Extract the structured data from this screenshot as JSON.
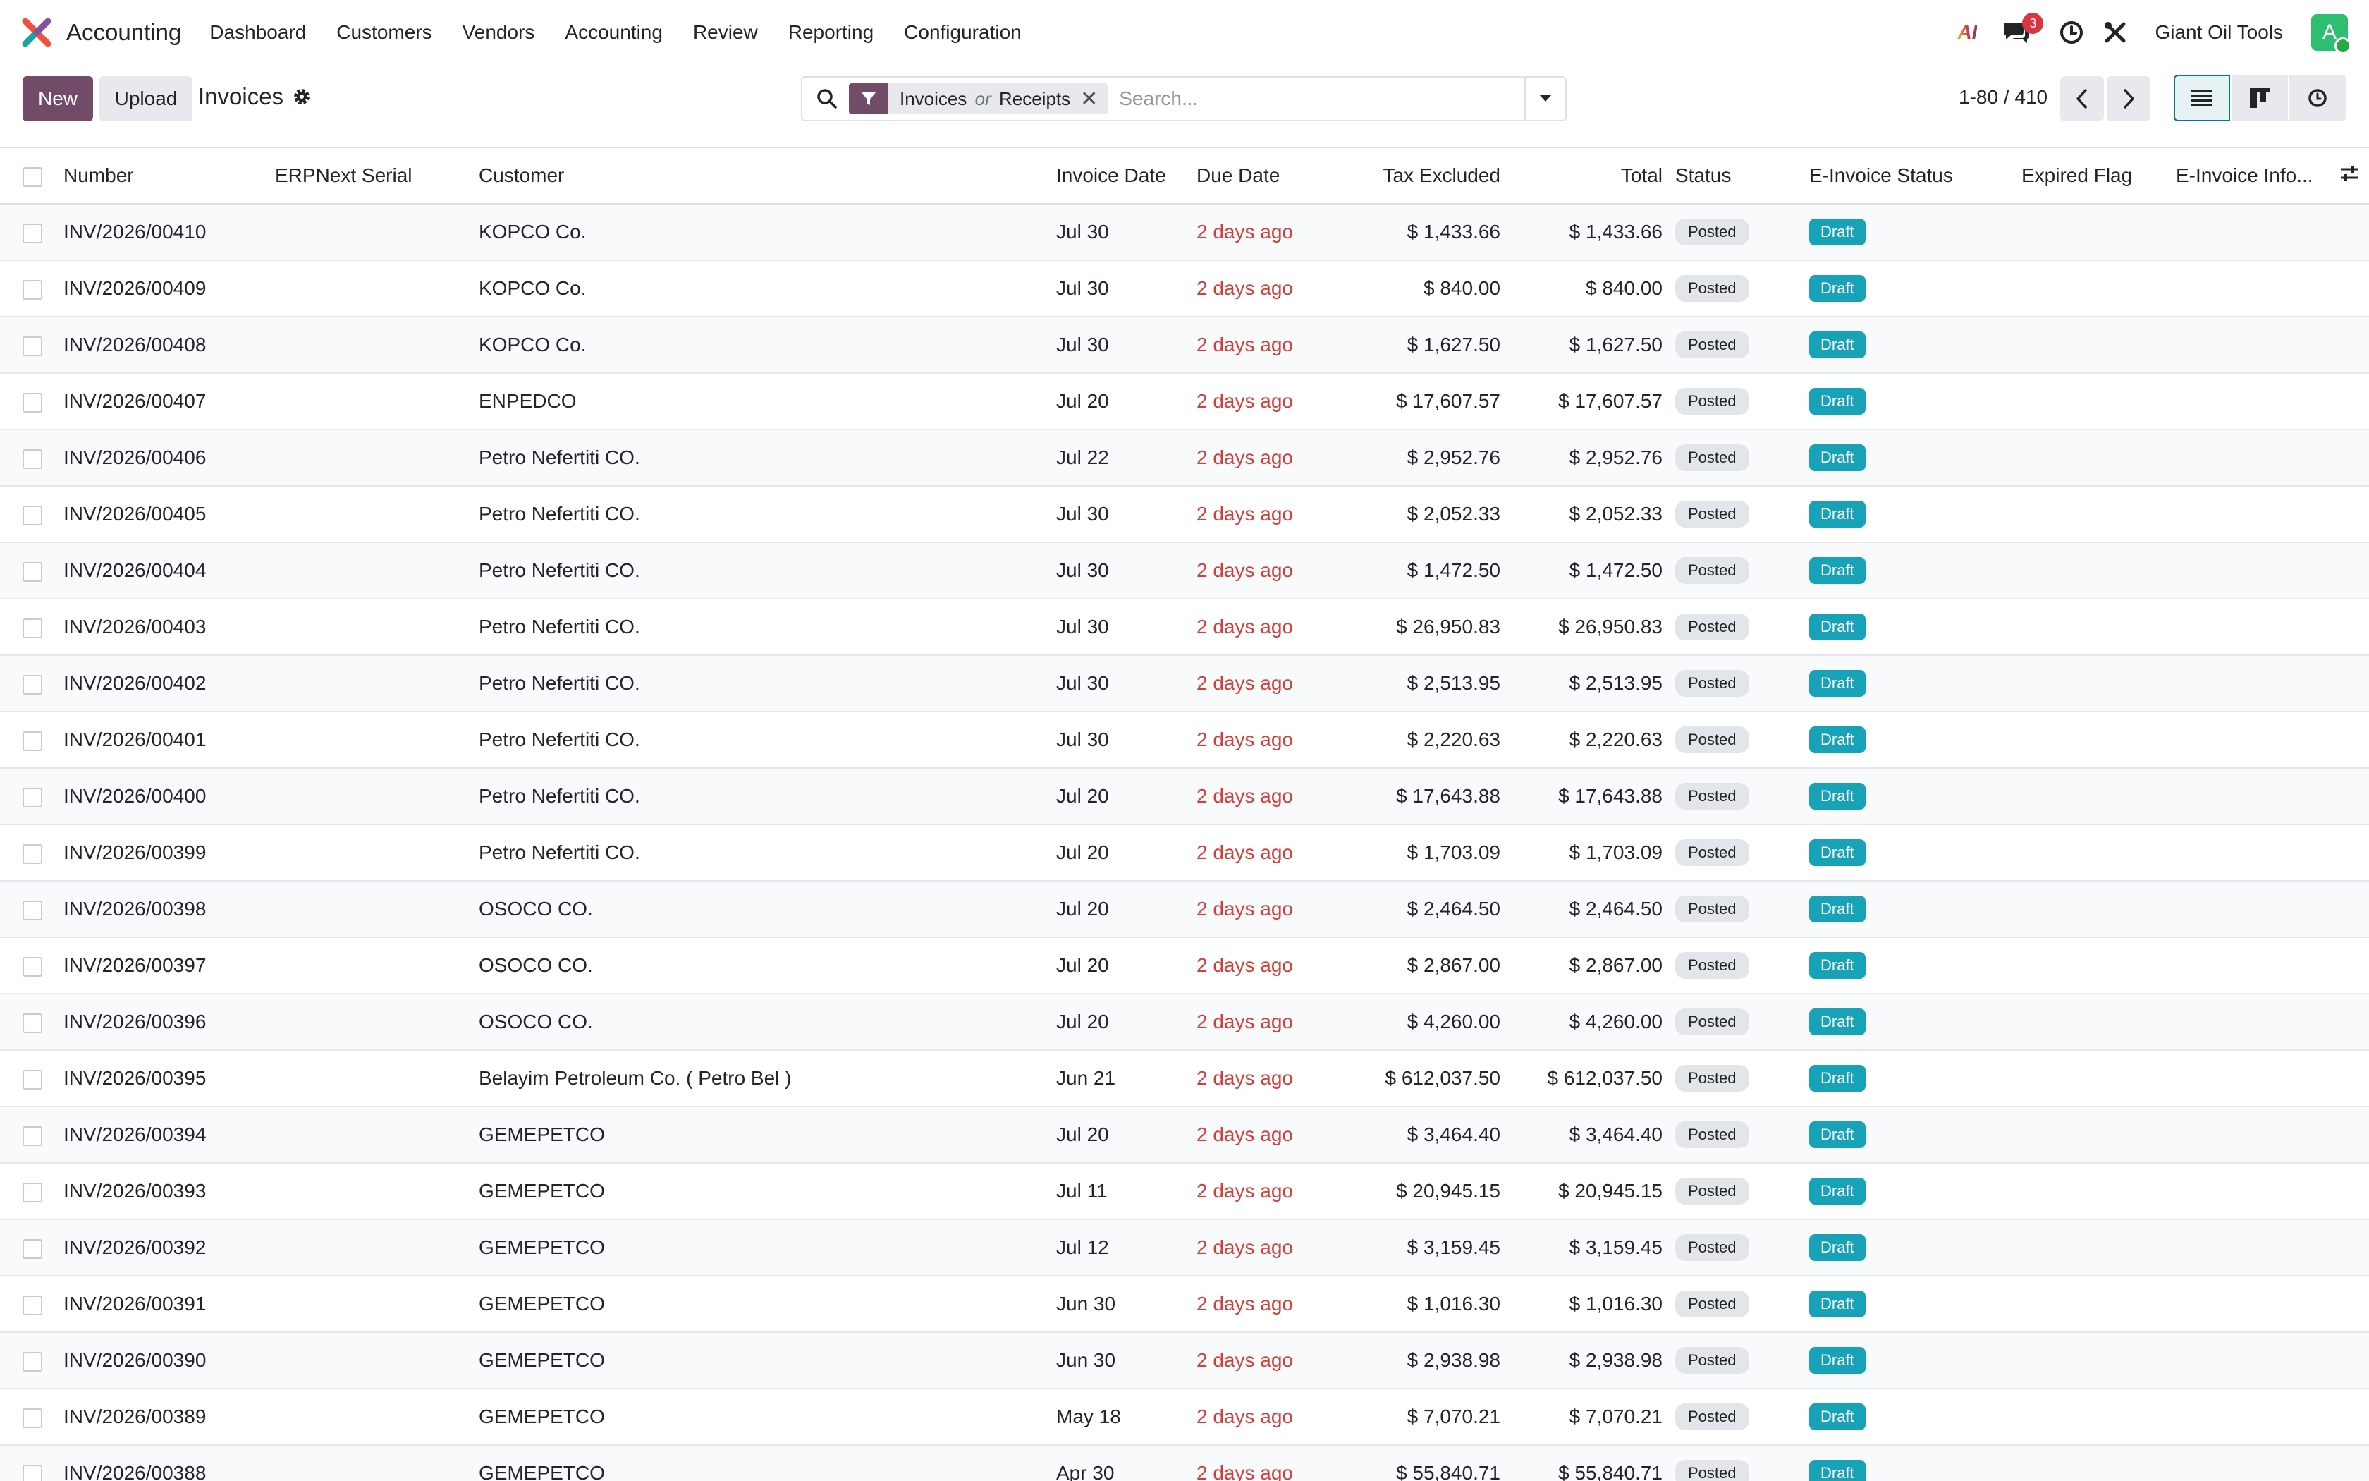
{
  "navbar": {
    "app_name": "Accounting",
    "menu": [
      "Dashboard",
      "Customers",
      "Vendors",
      "Accounting",
      "Review",
      "Reporting",
      "Configuration"
    ],
    "ai_label": "AI",
    "messages_count": "3",
    "company": "Giant Oil Tools",
    "avatar_initial": "A"
  },
  "control": {
    "new_label": "New",
    "upload_label": "Upload",
    "title": "Invoices",
    "facet_part1": "Invoices",
    "facet_or": "or",
    "facet_part2": "Receipts",
    "search_placeholder": "Search...",
    "pager": "1-80 / 410"
  },
  "table": {
    "columns": [
      "Number",
      "ERPNext Serial",
      "Customer",
      "Invoice Date",
      "Due Date",
      "Tax Excluded",
      "Total",
      "Status",
      "E-Invoice Status",
      "Expired Flag",
      "E-Invoice Info..."
    ],
    "rows": [
      {
        "number": "INV/2026/00410",
        "customer": "KOPCO Co.",
        "invoice_date": "Jul 30",
        "due": "2 days ago",
        "tax_excluded": "$ 1,433.66",
        "total": "$ 1,433.66",
        "status": "Posted",
        "einvoice": "Draft"
      },
      {
        "number": "INV/2026/00409",
        "customer": "KOPCO Co.",
        "invoice_date": "Jul 30",
        "due": "2 days ago",
        "tax_excluded": "$ 840.00",
        "total": "$ 840.00",
        "status": "Posted",
        "einvoice": "Draft"
      },
      {
        "number": "INV/2026/00408",
        "customer": "KOPCO Co.",
        "invoice_date": "Jul 30",
        "due": "2 days ago",
        "tax_excluded": "$ 1,627.50",
        "total": "$ 1,627.50",
        "status": "Posted",
        "einvoice": "Draft"
      },
      {
        "number": "INV/2026/00407",
        "customer": "ENPEDCO",
        "invoice_date": "Jul 20",
        "due": "2 days ago",
        "tax_excluded": "$ 17,607.57",
        "total": "$ 17,607.57",
        "status": "Posted",
        "einvoice": "Draft"
      },
      {
        "number": "INV/2026/00406",
        "customer": "Petro Nefertiti CO.",
        "invoice_date": "Jul 22",
        "due": "2 days ago",
        "tax_excluded": "$ 2,952.76",
        "total": "$ 2,952.76",
        "status": "Posted",
        "einvoice": "Draft"
      },
      {
        "number": "INV/2026/00405",
        "customer": "Petro Nefertiti CO.",
        "invoice_date": "Jul 30",
        "due": "2 days ago",
        "tax_excluded": "$ 2,052.33",
        "total": "$ 2,052.33",
        "status": "Posted",
        "einvoice": "Draft"
      },
      {
        "number": "INV/2026/00404",
        "customer": "Petro Nefertiti CO.",
        "invoice_date": "Jul 30",
        "due": "2 days ago",
        "tax_excluded": "$ 1,472.50",
        "total": "$ 1,472.50",
        "status": "Posted",
        "einvoice": "Draft"
      },
      {
        "number": "INV/2026/00403",
        "customer": "Petro Nefertiti CO.",
        "invoice_date": "Jul 30",
        "due": "2 days ago",
        "tax_excluded": "$ 26,950.83",
        "total": "$ 26,950.83",
        "status": "Posted",
        "einvoice": "Draft"
      },
      {
        "number": "INV/2026/00402",
        "customer": "Petro Nefertiti CO.",
        "invoice_date": "Jul 30",
        "due": "2 days ago",
        "tax_excluded": "$ 2,513.95",
        "total": "$ 2,513.95",
        "status": "Posted",
        "einvoice": "Draft"
      },
      {
        "number": "INV/2026/00401",
        "customer": "Petro Nefertiti CO.",
        "invoice_date": "Jul 30",
        "due": "2 days ago",
        "tax_excluded": "$ 2,220.63",
        "total": "$ 2,220.63",
        "status": "Posted",
        "einvoice": "Draft"
      },
      {
        "number": "INV/2026/00400",
        "customer": "Petro Nefertiti CO.",
        "invoice_date": "Jul 20",
        "due": "2 days ago",
        "tax_excluded": "$ 17,643.88",
        "total": "$ 17,643.88",
        "status": "Posted",
        "einvoice": "Draft"
      },
      {
        "number": "INV/2026/00399",
        "customer": "Petro Nefertiti CO.",
        "invoice_date": "Jul 20",
        "due": "2 days ago",
        "tax_excluded": "$ 1,703.09",
        "total": "$ 1,703.09",
        "status": "Posted",
        "einvoice": "Draft"
      },
      {
        "number": "INV/2026/00398",
        "customer": "OSOCO CO.",
        "invoice_date": "Jul 20",
        "due": "2 days ago",
        "tax_excluded": "$ 2,464.50",
        "total": "$ 2,464.50",
        "status": "Posted",
        "einvoice": "Draft"
      },
      {
        "number": "INV/2026/00397",
        "customer": "OSOCO CO.",
        "invoice_date": "Jul 20",
        "due": "2 days ago",
        "tax_excluded": "$ 2,867.00",
        "total": "$ 2,867.00",
        "status": "Posted",
        "einvoice": "Draft"
      },
      {
        "number": "INV/2026/00396",
        "customer": "OSOCO CO.",
        "invoice_date": "Jul 20",
        "due": "2 days ago",
        "tax_excluded": "$ 4,260.00",
        "total": "$ 4,260.00",
        "status": "Posted",
        "einvoice": "Draft"
      },
      {
        "number": "INV/2026/00395",
        "customer": "Belayim Petroleum Co. ( Petro Bel )",
        "invoice_date": "Jun 21",
        "due": "2 days ago",
        "tax_excluded": "$ 612,037.50",
        "total": "$ 612,037.50",
        "status": "Posted",
        "einvoice": "Draft"
      },
      {
        "number": "INV/2026/00394",
        "customer": "GEMEPETCO",
        "invoice_date": "Jul 20",
        "due": "2 days ago",
        "tax_excluded": "$ 3,464.40",
        "total": "$ 3,464.40",
        "status": "Posted",
        "einvoice": "Draft"
      },
      {
        "number": "INV/2026/00393",
        "customer": "GEMEPETCO",
        "invoice_date": "Jul 11",
        "due": "2 days ago",
        "tax_excluded": "$ 20,945.15",
        "total": "$ 20,945.15",
        "status": "Posted",
        "einvoice": "Draft"
      },
      {
        "number": "INV/2026/00392",
        "customer": "GEMEPETCO",
        "invoice_date": "Jul 12",
        "due": "2 days ago",
        "tax_excluded": "$ 3,159.45",
        "total": "$ 3,159.45",
        "status": "Posted",
        "einvoice": "Draft"
      },
      {
        "number": "INV/2026/00391",
        "customer": "GEMEPETCO",
        "invoice_date": "Jun 30",
        "due": "2 days ago",
        "tax_excluded": "$ 1,016.30",
        "total": "$ 1,016.30",
        "status": "Posted",
        "einvoice": "Draft"
      },
      {
        "number": "INV/2026/00390",
        "customer": "GEMEPETCO",
        "invoice_date": "Jun 30",
        "due": "2 days ago",
        "tax_excluded": "$ 2,938.98",
        "total": "$ 2,938.98",
        "status": "Posted",
        "einvoice": "Draft"
      },
      {
        "number": "INV/2026/00389",
        "customer": "GEMEPETCO",
        "invoice_date": "May 18",
        "due": "2 days ago",
        "tax_excluded": "$ 7,070.21",
        "total": "$ 7,070.21",
        "status": "Posted",
        "einvoice": "Draft"
      },
      {
        "number": "INV/2026/00388",
        "customer": "GEMEPETCO",
        "invoice_date": "Apr 30",
        "due": "2 days ago",
        "tax_excluded": "$ 55,840.71",
        "total": "$ 55,840.71",
        "status": "Posted",
        "einvoice": "Draft"
      }
    ]
  },
  "colors": {
    "brand": "#714b67",
    "accent": "#017e84",
    "draft_badge": "#17a2b8",
    "overdue": "#d23f3a",
    "notification": "#d9363e"
  },
  "icons": {
    "app": "accounting-app-icon",
    "messages": "chat-icon",
    "activity": "clock-icon",
    "tools": "tools-icon",
    "settings": "gear-icon",
    "search": "search-icon",
    "filter": "filter-icon",
    "list_view": "list-view-icon",
    "kanban_view": "kanban-view-icon",
    "activity_view": "activity-view-icon",
    "optional_columns": "sliders-icon"
  }
}
